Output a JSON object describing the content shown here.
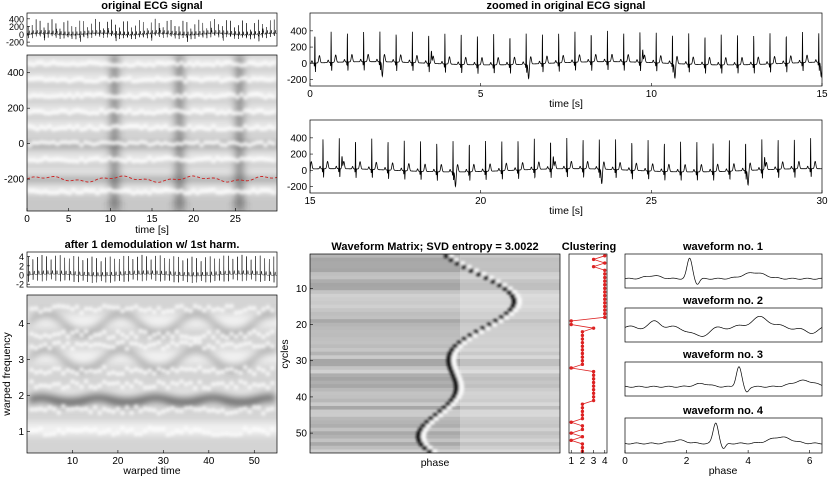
{
  "chart_data": [
    {
      "id": "orig",
      "type": "line",
      "title": "original ECG signal",
      "xlim": [
        0,
        30
      ],
      "ylim": [
        -300,
        550
      ],
      "yticks": [
        400,
        200,
        0,
        -200
      ],
      "beats_per_second": 2.1,
      "line_color": "#000000"
    },
    {
      "id": "spec1",
      "type": "heatmap",
      "title": "",
      "xlabel": "time [s]",
      "xlim": [
        0,
        30
      ],
      "ylim": [
        -380,
        500
      ],
      "xticks": [
        0,
        5,
        10,
        15,
        20,
        25
      ],
      "yticks": [
        400,
        200,
        0,
        -200
      ],
      "bands": [
        0,
        90,
        180,
        270,
        360,
        450,
        -90,
        -180,
        -270
      ],
      "dark_columns": [
        10.5,
        18.3,
        25.5
      ],
      "ridge_level": -200,
      "ridge_color": "#cc2222"
    },
    {
      "id": "zoom1",
      "type": "line",
      "title": "zoomed in original ECG signal",
      "xlabel": "time [s]",
      "xlim": [
        0,
        15
      ],
      "ylim": [
        -280,
        620
      ],
      "xticks": [
        0,
        5,
        10,
        15
      ],
      "yticks": [
        400,
        200,
        0,
        -200
      ]
    },
    {
      "id": "zoom2",
      "type": "line",
      "title": "",
      "xlabel": "time [s]",
      "xlim": [
        15,
        30
      ],
      "ylim": [
        -280,
        620
      ],
      "xticks": [
        15,
        20,
        25,
        30
      ],
      "yticks": [
        400,
        200,
        0,
        -200
      ]
    },
    {
      "id": "demod",
      "type": "line",
      "title": "after 1 demodulation w/ 1st harm.",
      "xlim": [
        0,
        55
      ],
      "ylim": [
        -2.6,
        5
      ],
      "yticks": [
        4,
        2,
        0,
        -2
      ]
    },
    {
      "id": "spec2",
      "type": "heatmap",
      "title": "",
      "xlabel": "warped time",
      "ylabel": "warped frequency",
      "xlim": [
        0,
        55
      ],
      "ylim": [
        0.4,
        4.8
      ],
      "xticks": [
        10,
        20,
        30,
        40,
        50
      ],
      "yticks": [
        1,
        2,
        3,
        4
      ],
      "bands": [
        1,
        1.9,
        3,
        4
      ],
      "dark_band": 1.9
    },
    {
      "id": "matrix",
      "type": "heatmap",
      "title": "Waveform Matrix; SVD entropy = 3.0022",
      "xlabel": "phase",
      "ylabel": "cycles",
      "ylim": [
        55,
        1
      ],
      "yticks": [
        10,
        20,
        30,
        40,
        50
      ],
      "cycles": 55
    },
    {
      "id": "cluster",
      "type": "line",
      "title": "Clustering",
      "xlim": [
        0.8,
        4.2
      ],
      "ylim": [
        55,
        1
      ],
      "xticks": [
        1,
        2,
        3,
        4
      ],
      "marker_color": "#dd2222",
      "assignments": [
        4,
        3,
        4,
        3,
        4,
        4,
        4,
        4,
        4,
        4,
        4,
        4,
        4,
        4,
        4,
        4,
        4,
        4,
        1,
        1,
        3,
        2,
        2,
        2,
        2,
        2,
        2,
        2,
        2,
        2,
        2,
        1,
        3,
        3,
        3,
        3,
        3,
        3,
        3,
        3,
        3,
        2,
        2,
        2,
        2,
        2,
        1,
        2,
        2,
        1,
        2,
        1,
        2,
        2,
        2
      ]
    },
    {
      "id": "wf1",
      "type": "line",
      "title": "waveform no. 1",
      "xlim": [
        0,
        6.4
      ],
      "ylim": [
        -1.2,
        3.2
      ],
      "peak_phase": 2.1
    },
    {
      "id": "wf2",
      "type": "line",
      "title": "waveform no. 2",
      "xlim": [
        0,
        6.4
      ],
      "ylim": [
        -1.5,
        2.0
      ],
      "peak_phase": 2.4
    },
    {
      "id": "wf3",
      "type": "line",
      "title": "waveform no. 3",
      "xlim": [
        0,
        6.4
      ],
      "ylim": [
        -1.2,
        3.2
      ],
      "peak_phase": 3.7
    },
    {
      "id": "wf4",
      "type": "line",
      "title": "waveform no. 4",
      "xlabel": "phase",
      "xlim": [
        0,
        6.4
      ],
      "ylim": [
        -1.2,
        3.2
      ],
      "xticks": [
        0,
        2,
        4,
        6
      ],
      "peak_phase": 2.95
    }
  ]
}
